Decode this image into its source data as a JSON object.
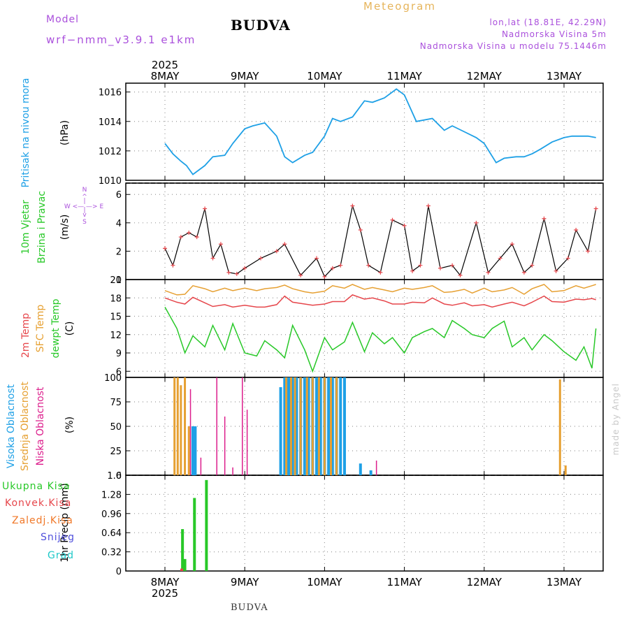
{
  "header": {
    "model_label": "Model",
    "model_name": "wrf−nmm_v3.9.1  e1km",
    "station": "BUDVA",
    "title": "Meteogram",
    "coords": "lon,lat (18.81E, 42.29N)",
    "altitude": "Nadmorska Visina 5m",
    "model_altitude": "Nadmorska Visina u modelu 75.1446m",
    "credit": "made by Angel",
    "footer_station": "BUDVA"
  },
  "colors": {
    "pressure": "#1ea0e6",
    "temp2m": "#e6464b",
    "sfc": "#e6a032",
    "dewpt": "#28c828",
    "high": "#1ea0e6",
    "mid": "#e6a032",
    "low": "#dc1e8c",
    "precip_total": "#28c828",
    "precip_conv": "#e6464b",
    "frz": "#f07828",
    "snow": "#5050dc",
    "grad": "#1ec8c8",
    "header_purple": "#aa50dc",
    "title_orange": "#e6b45a"
  },
  "axis": {
    "top_year": "2025",
    "bottom_year": "2025",
    "dates": [
      "8MAY",
      "9MAY",
      "10MAY",
      "11MAY",
      "12MAY",
      "13MAY"
    ]
  },
  "chart_data": [
    {
      "panel": "pressure",
      "type": "line",
      "ylabel_lines": [
        "Pritisak na nivou mora",
        "(hPa)"
      ],
      "ylim": [
        1010,
        1016.6
      ],
      "yticks": [
        "1010",
        "1012",
        "1014",
        "1016"
      ],
      "x_days": [
        0.0,
        0.1,
        0.2,
        0.27,
        0.35,
        0.5,
        0.6,
        0.75,
        0.85,
        1.0,
        1.1,
        1.25,
        1.4,
        1.5,
        1.6,
        1.75,
        1.85,
        2.0,
        2.1,
        2.2,
        2.35,
        2.5,
        2.6,
        2.75,
        2.9,
        3.0,
        3.15,
        3.35,
        3.5,
        3.6,
        3.75,
        3.9,
        4.0,
        4.15,
        4.25,
        4.4,
        4.5,
        4.6,
        4.7,
        4.85,
        5.0,
        5.1,
        5.2,
        5.3,
        5.4
      ],
      "series": [
        {
          "values": [
            1012.5,
            1011.8,
            1011.3,
            1011.0,
            1010.4,
            1011.0,
            1011.6,
            1011.7,
            1012.5,
            1013.5,
            1013.7,
            1013.9,
            1013.0,
            1011.6,
            1011.2,
            1011.7,
            1011.9,
            1013.0,
            1014.2,
            1014.0,
            1014.3,
            1015.4,
            1015.3,
            1015.6,
            1016.2,
            1015.8,
            1014.0,
            1014.2,
            1013.4,
            1013.7,
            1013.3,
            1012.9,
            1012.5,
            1011.2,
            1011.5,
            1011.6,
            1011.6,
            1011.8,
            1012.1,
            1012.6,
            1012.9,
            1013.0,
            1013.0,
            1013.0,
            1012.9
          ]
        }
      ]
    },
    {
      "panel": "wind",
      "type": "line",
      "ylabel_lines": [
        "10m Vjetar",
        "Brzina i Pravac",
        "(m/s)"
      ],
      "compass_lines": [
        "N",
        "^",
        "|",
        "W <— —> E",
        "|",
        "v",
        "S"
      ],
      "ylim": [
        0,
        6.8
      ],
      "yticks": [
        "0",
        "2",
        "4",
        "6"
      ],
      "x_days": [
        0.0,
        0.1,
        0.2,
        0.3,
        0.4,
        0.5,
        0.6,
        0.7,
        0.8,
        0.9,
        1.0,
        1.2,
        1.4,
        1.5,
        1.7,
        1.9,
        2.0,
        2.1,
        2.2,
        2.35,
        2.45,
        2.55,
        2.7,
        2.85,
        3.0,
        3.1,
        3.2,
        3.3,
        3.45,
        3.6,
        3.7,
        3.9,
        4.05,
        4.2,
        4.35,
        4.5,
        4.6,
        4.75,
        4.9,
        5.05,
        5.15,
        5.3,
        5.4
      ],
      "series": [
        {
          "name": "speed",
          "values": [
            2.2,
            1.0,
            3.0,
            3.3,
            3.0,
            5.0,
            1.5,
            2.5,
            0.5,
            0.4,
            0.8,
            1.5,
            2.0,
            2.5,
            0.3,
            1.5,
            0.2,
            0.8,
            1.0,
            5.2,
            3.5,
            1.0,
            0.5,
            4.2,
            3.8,
            0.6,
            1.0,
            5.2,
            0.8,
            1.0,
            0.3,
            4.0,
            0.5,
            1.5,
            2.5,
            0.5,
            1.0,
            4.3,
            0.6,
            1.5,
            3.5,
            2.0,
            5.0
          ]
        }
      ]
    },
    {
      "panel": "temperature",
      "type": "line",
      "ylabel_lines": [
        "2m Temp",
        "SFC Temp",
        "dewpt Temp",
        "(C)"
      ],
      "ylim": [
        5,
        21
      ],
      "yticks": [
        "6",
        "9",
        "12",
        "15",
        "18",
        "21"
      ],
      "x_days": [
        0.0,
        0.15,
        0.25,
        0.35,
        0.5,
        0.6,
        0.75,
        0.85,
        1.0,
        1.15,
        1.25,
        1.4,
        1.5,
        1.6,
        1.75,
        1.85,
        2.0,
        2.1,
        2.25,
        2.35,
        2.5,
        2.6,
        2.75,
        2.85,
        3.0,
        3.1,
        3.25,
        3.35,
        3.5,
        3.6,
        3.75,
        3.85,
        4.0,
        4.1,
        4.25,
        4.35,
        4.5,
        4.6,
        4.75,
        4.85,
        5.0,
        5.15,
        5.25,
        5.35,
        5.4
      ],
      "series": [
        {
          "name": "2m Temp",
          "values": [
            18.0,
            17.3,
            17.0,
            18.1,
            17.2,
            16.6,
            16.9,
            16.5,
            16.8,
            16.5,
            16.5,
            16.9,
            18.3,
            17.3,
            17.0,
            16.8,
            17.0,
            17.4,
            17.4,
            18.5,
            17.8,
            18.0,
            17.5,
            17.0,
            17.0,
            17.3,
            17.2,
            18.0,
            17.0,
            16.8,
            17.2,
            16.7,
            16.9,
            16.5,
            17.0,
            17.3,
            16.7,
            17.3,
            18.3,
            17.4,
            17.3,
            17.8,
            17.7,
            17.9,
            17.7
          ]
        },
        {
          "name": "SFC Temp",
          "values": [
            19.2,
            18.5,
            18.6,
            20.0,
            19.5,
            19.0,
            19.6,
            19.2,
            19.6,
            19.2,
            19.5,
            19.7,
            20.1,
            19.5,
            19.0,
            18.8,
            19.1,
            20.0,
            19.6,
            20.2,
            19.4,
            19.7,
            19.3,
            19.0,
            19.6,
            19.4,
            19.7,
            20.0,
            18.9,
            19.0,
            19.4,
            18.8,
            19.6,
            19.0,
            19.3,
            19.7,
            18.6,
            19.5,
            20.2,
            19.0,
            19.2,
            20.0,
            19.6,
            20.0,
            20.2
          ]
        },
        {
          "name": "dewpt Temp",
          "values": [
            16.5,
            13.0,
            9.0,
            11.8,
            10.0,
            13.5,
            9.5,
            13.8,
            9.0,
            8.5,
            11.0,
            9.5,
            8.2,
            13.5,
            9.5,
            6.0,
            11.5,
            9.5,
            10.8,
            14.0,
            9.2,
            12.3,
            10.5,
            11.5,
            9.0,
            11.5,
            12.5,
            13.0,
            11.5,
            14.3,
            13.0,
            12.0,
            11.5,
            13.0,
            14.2,
            10.0,
            11.5,
            9.5,
            12.0,
            11.0,
            9.2,
            7.8,
            10.0,
            6.5,
            13.0
          ]
        }
      ]
    },
    {
      "panel": "cloud",
      "type": "bar",
      "ylabel_lines": [
        "Visoka Oblacnost",
        "Srednja Oblacnost",
        "Niska Oblacnost",
        "(%)"
      ],
      "ylim": [
        0,
        100
      ],
      "yticks": [
        "0",
        "25",
        "50",
        "75",
        "100"
      ],
      "series": [
        {
          "name": "Visoka Oblacnost",
          "x_days": [
            0.35,
            0.38,
            1.45,
            1.5,
            1.55,
            1.6,
            1.65,
            1.7,
            1.75,
            1.8,
            1.85,
            1.9,
            1.95,
            2.0,
            2.05,
            2.1,
            2.15,
            2.2,
            2.25,
            2.45,
            2.58
          ],
          "values": [
            50,
            50,
            90,
            100,
            100,
            100,
            100,
            100,
            100,
            100,
            100,
            100,
            100,
            100,
            100,
            100,
            100,
            100,
            100,
            12,
            5
          ]
        },
        {
          "name": "Srednja Oblacnost",
          "x_days": [
            0.12,
            0.16,
            0.2,
            0.25,
            0.3,
            1.52,
            1.58,
            1.63,
            1.7,
            1.78,
            1.85,
            1.93,
            2.0,
            2.08,
            2.15,
            4.95,
            5.02
          ],
          "values": [
            100,
            100,
            92,
            100,
            50,
            100,
            100,
            100,
            100,
            100,
            100,
            100,
            100,
            100,
            100,
            98,
            10
          ]
        },
        {
          "name": "Niska Oblacnost",
          "x_days": [
            0.32,
            0.45,
            0.65,
            0.75,
            0.85,
            0.97,
            1.03,
            2.65
          ],
          "values": [
            88,
            18,
            100,
            60,
            8,
            100,
            67,
            15
          ]
        }
      ]
    },
    {
      "panel": "precip",
      "type": "bar",
      "ylabel_lines": [
        "1hr Precip (mm)"
      ],
      "legend": [
        "Ukupna Kisa",
        "Konvek.Kisa",
        "Zaledj.Kisa",
        "Snijeg",
        "Grad"
      ],
      "ylim": [
        0,
        1.6
      ],
      "yticks": [
        "0",
        "0.32",
        "0.64",
        "0.96",
        "1.28",
        "1.6"
      ],
      "series": [
        {
          "name": "Ukupna Kisa",
          "x_days": [
            0.22,
            0.25,
            0.37,
            0.52
          ],
          "values": [
            0.7,
            0.2,
            1.22,
            1.52
          ]
        },
        {
          "name": "Konvek.Kisa",
          "x_days": [
            0.21
          ],
          "values": [
            0.04
          ]
        }
      ]
    }
  ]
}
